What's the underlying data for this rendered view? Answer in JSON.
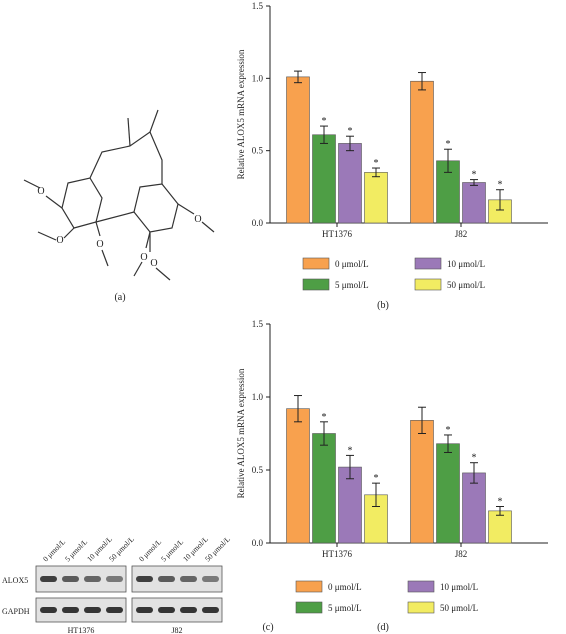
{
  "panel_labels": {
    "a": "(a)",
    "b": "(b)",
    "c": "(c)",
    "d": "(d)"
  },
  "molecule": {
    "methoxy_label": "O"
  },
  "western_blot": {
    "lanes": [
      "0 μmol/L",
      "5 μmol/L",
      "10 μmol/L",
      "50 μmol/L"
    ],
    "rows": [
      "ALOX5",
      "GAPDH"
    ],
    "groups": [
      "HT1376",
      "J82"
    ]
  },
  "colors": {
    "0 μmol/L": "#f8a14e",
    "5 μmol/L": "#4e9e45",
    "10 μmol/L": "#9b79b8",
    "50 μmol/L": "#f2ec62"
  },
  "chart_data": [
    {
      "id": "b",
      "type": "bar",
      "ylabel": "Relative ALOX5 mRNA expression",
      "ylim": [
        0,
        1.5
      ],
      "yticks": [
        "0.0",
        "0.5",
        "1.0",
        "1.5"
      ],
      "categories": [
        "HT1376",
        "J82"
      ],
      "series": [
        {
          "name": "0 μmol/L",
          "values": [
            1.01,
            0.98
          ],
          "errors": [
            0.04,
            0.06
          ],
          "sig": [
            "",
            ""
          ]
        },
        {
          "name": "5 μmol/L",
          "values": [
            0.61,
            0.43
          ],
          "errors": [
            0.06,
            0.08
          ],
          "sig": [
            "*",
            "*"
          ]
        },
        {
          "name": "10 μmol/L",
          "values": [
            0.55,
            0.28
          ],
          "errors": [
            0.05,
            0.02
          ],
          "sig": [
            "*",
            "*"
          ]
        },
        {
          "name": "50 μmol/L",
          "values": [
            0.35,
            0.16
          ],
          "errors": [
            0.03,
            0.07
          ],
          "sig": [
            "*",
            "*"
          ]
        }
      ],
      "legend": [
        "0 μmol/L",
        "10 μmol/L",
        "5 μmol/L",
        "50 μmol/L"
      ]
    },
    {
      "id": "d",
      "type": "bar",
      "ylabel": "Relative ALOX5 mRNA expression",
      "ylim": [
        0,
        1.5
      ],
      "yticks": [
        "0.0",
        "0.5",
        "1.0",
        "1.5"
      ],
      "categories": [
        "HT1376",
        "J82"
      ],
      "series": [
        {
          "name": "0 μmol/L",
          "values": [
            0.92,
            0.84
          ],
          "errors": [
            0.09,
            0.09
          ],
          "sig": [
            "",
            ""
          ]
        },
        {
          "name": "5 μmol/L",
          "values": [
            0.75,
            0.68
          ],
          "errors": [
            0.08,
            0.06
          ],
          "sig": [
            "*",
            "*"
          ]
        },
        {
          "name": "10 μmol/L",
          "values": [
            0.52,
            0.48
          ],
          "errors": [
            0.08,
            0.07
          ],
          "sig": [
            "*",
            "*"
          ]
        },
        {
          "name": "50 μmol/L",
          "values": [
            0.33,
            0.22
          ],
          "errors": [
            0.08,
            0.03
          ],
          "sig": [
            "*",
            "*"
          ]
        }
      ],
      "legend": [
        "0 μmol/L",
        "10 μmol/L",
        "5 μmol/L",
        "50 μmol/L"
      ]
    }
  ]
}
